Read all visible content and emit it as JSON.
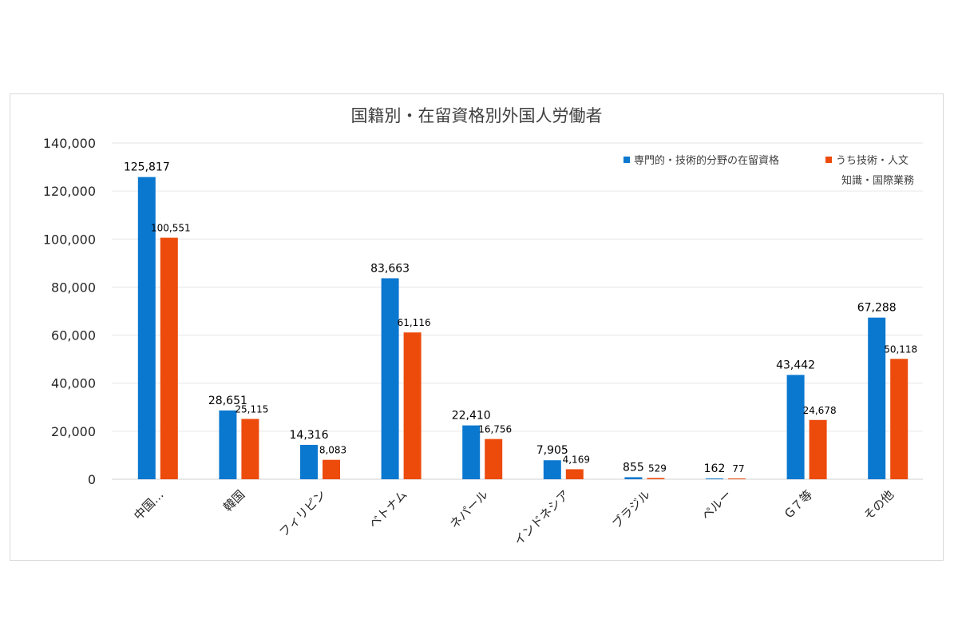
{
  "chart_data": {
    "type": "bar",
    "title": "国籍別・在留資格別外国人労働者",
    "categories": [
      "中国…",
      "韓国",
      "フィリピン",
      "ベトナム",
      "ネパール",
      "インドネシア",
      "ブラジル",
      "ペルー",
      "G７等",
      "その他"
    ],
    "series": [
      {
        "name": "専門的・技術的分野の在留資格",
        "color": "#0b78d0",
        "values": [
          125817,
          28651,
          14316,
          83663,
          22410,
          7905,
          855,
          162,
          43442,
          67288
        ],
        "labels": [
          "125,817",
          "28,651",
          "14,316",
          "83,663",
          "22,410",
          "7,905",
          "855",
          "162",
          "43,442",
          "67,288"
        ]
      },
      {
        "name": "うち技術・人文知識・国際業務",
        "name_lines": [
          "うち技術・人文",
          "知識・国際業務"
        ],
        "color": "#ec4b0c",
        "values": [
          100551,
          25115,
          8083,
          61116,
          16756,
          4169,
          529,
          77,
          24678,
          50118
        ],
        "labels": [
          "100,551",
          "25,115",
          "8,083",
          "61,116",
          "16,756",
          "4,169",
          "529",
          "77",
          "24,678",
          "50,118"
        ]
      }
    ],
    "ylim": [
      0,
      140000
    ],
    "yticks": [
      "0",
      "20,000",
      "40,000",
      "60,000",
      "80,000",
      "100,000",
      "120,000",
      "140,000"
    ],
    "grid": true,
    "legend_position": "top-right"
  }
}
